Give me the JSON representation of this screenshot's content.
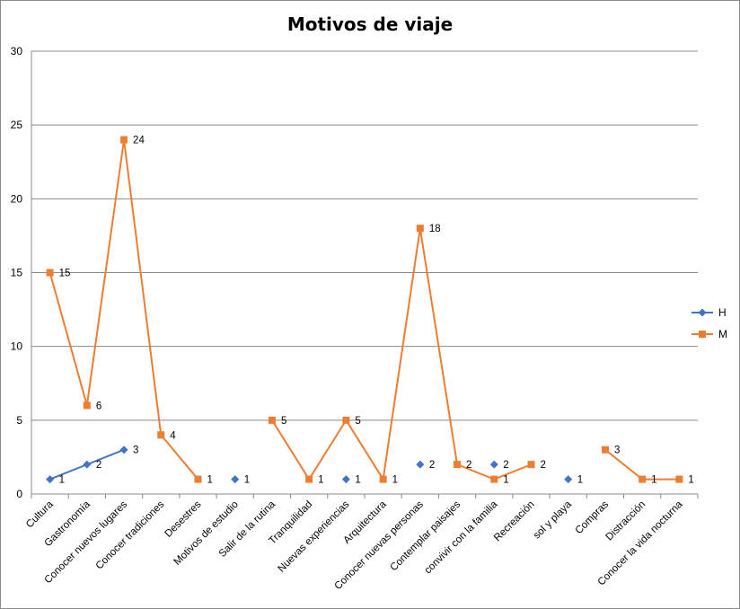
{
  "chart_data": {
    "type": "line",
    "title": "Motivos de viaje",
    "categories": [
      "Cultura",
      "Gastronomía",
      "Conocer nuevos lugares",
      "Conocer tradiciones",
      "Desestres",
      "Motivos de estudio",
      "Salir de la rutina",
      "Tranquilidad",
      "Nuevas experiencias",
      "Arquitectura",
      "Conocer nuevas personas",
      "Contemplar paisajes",
      "convivir con la familia",
      "Recreación",
      "sol y playa",
      "Compras",
      "Distracción",
      "Conocer la vida nocturna"
    ],
    "series": [
      {
        "name": "H",
        "color": "#4472c4",
        "marker": "diamond",
        "values": [
          1,
          2,
          3,
          null,
          null,
          1,
          null,
          null,
          1,
          null,
          2,
          null,
          2,
          null,
          1,
          null,
          null,
          null
        ]
      },
      {
        "name": "M",
        "color": "#ed7d31",
        "marker": "square",
        "values": [
          15,
          6,
          24,
          4,
          1,
          null,
          5,
          1,
          5,
          1,
          18,
          2,
          1,
          2,
          null,
          3,
          1,
          1
        ]
      }
    ],
    "ylim": [
      0,
      30
    ],
    "yticks": [
      0,
      5,
      10,
      15,
      20,
      25,
      30
    ],
    "grid": true,
    "legend": "right"
  }
}
